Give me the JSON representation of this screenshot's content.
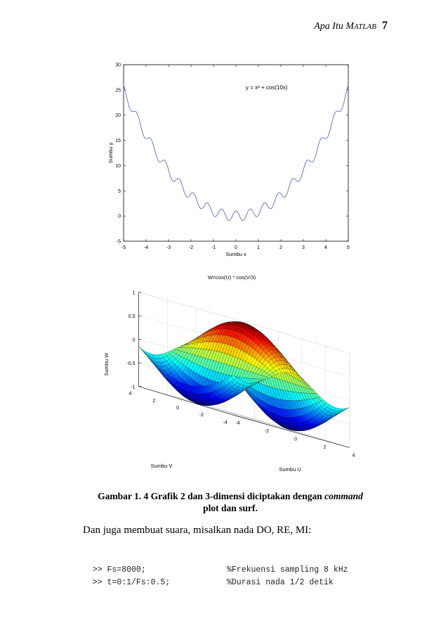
{
  "header": {
    "title_prefix": "Apa Itu M",
    "title_smallcaps": "ATLAB",
    "page_number": "7"
  },
  "chart_data": [
    {
      "type": "line",
      "title": "",
      "annotation": "y = x² + cos(10x)",
      "xlabel": "Sumbu x",
      "ylabel": "Sumbu y",
      "xlim": [
        -5,
        5
      ],
      "ylim": [
        -5,
        30
      ],
      "x_ticks": [
        -5,
        -4,
        -3,
        -2,
        -1,
        0,
        1,
        2,
        3,
        4,
        5
      ],
      "y_ticks": [
        -5,
        0,
        5,
        10,
        15,
        20,
        25,
        30
      ],
      "series": [
        {
          "expression": "x^2 + cos(10*x)"
        }
      ],
      "line_color": "#5a6fb8",
      "grid": false
    },
    {
      "type": "surface",
      "title": "W=cos(U) * cos(V/3)",
      "xlabel": "Sumbu U",
      "ylabel": "Sumbu V",
      "zlabel": "Sumbu W",
      "u_ticks": [
        -4,
        -2,
        0,
        2,
        4
      ],
      "v_ticks": [
        -4,
        -2,
        0,
        2,
        4
      ],
      "z_ticks": [
        -1,
        -0.5,
        0,
        0.5,
        1
      ],
      "zlim": [
        -1,
        1
      ],
      "colormap": "jet",
      "grid": true
    }
  ],
  "caption": {
    "line1_text": "Gambar 1. 4  Grafik 2 dan 3-dimensi diciptakan dengan ",
    "line1_italic": "command",
    "line2": "plot dan surf."
  },
  "paragraph": "Dan juga membuat suara, misalkan nada DO, RE, MI:",
  "code": [
    {
      "cmd": ">> Fs=8000;",
      "comment": "%Frekuensi sampling 8 kHz"
    },
    {
      "cmd": ">> t=0:1/Fs:0.5;",
      "comment": "%Durasi nada 1/2 detik"
    }
  ]
}
